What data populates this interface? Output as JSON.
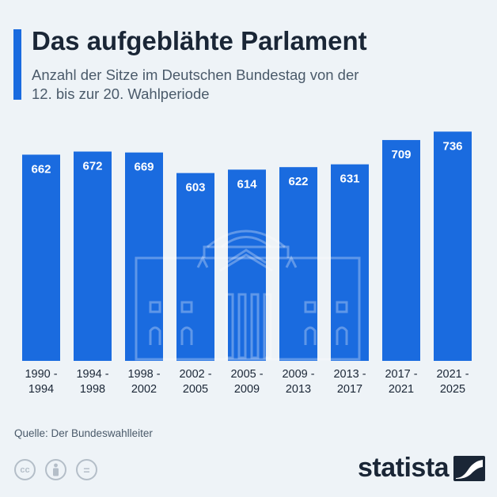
{
  "header": {
    "title": "Das aufgeblähte Parlament",
    "subtitle": "Anzahl der Sitze im Deutschen Bundestag von der 12. bis zur 20. Wahlperiode"
  },
  "chart_data": {
    "type": "bar",
    "categories": [
      [
        "1990 -",
        "1994"
      ],
      [
        "1994 -",
        "1998"
      ],
      [
        "1998 -",
        "2002"
      ],
      [
        "2002 -",
        "2005"
      ],
      [
        "2005 -",
        "2009"
      ],
      [
        "2009 -",
        "2013"
      ],
      [
        "2013 -",
        "2017"
      ],
      [
        "2017 -",
        "2021"
      ],
      [
        "2021 -",
        "2025"
      ]
    ],
    "values": [
      662,
      672,
      669,
      603,
      614,
      622,
      631,
      709,
      736
    ],
    "title": "Das aufgeblähte Parlament",
    "xlabel": "",
    "ylabel": "",
    "ylim": [
      0,
      736
    ],
    "grid": false,
    "data_labels": true
  },
  "colors": {
    "bar": "#1a6bdf",
    "accent": "#1a6bdf",
    "text": "#1a2636",
    "muted": "#4a5a6a",
    "background": "#eef3f7"
  },
  "footer": {
    "source": "Quelle: Der Bundeswahlleiter",
    "license_icons": [
      "cc",
      "by",
      "="
    ],
    "brand": "statista"
  }
}
